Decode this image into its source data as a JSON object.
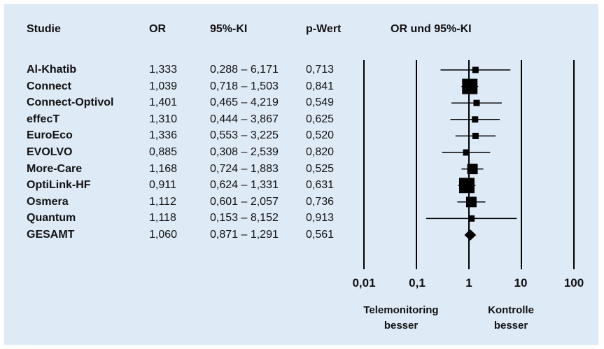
{
  "headers": {
    "study": "Studie",
    "or": "OR",
    "ci": "95%-KI",
    "p": "p-Wert",
    "plot": "OR und 95%-KI"
  },
  "rows": [
    {
      "study": "Al-Khatib",
      "or": "1,333",
      "ci": "0,288 – 6,171",
      "p": "0,713"
    },
    {
      "study": "Connect",
      "or": "1,039",
      "ci": "0,718 – 1,503",
      "p": "0,841"
    },
    {
      "study": "Connect-Optivol",
      "or": "1,401",
      "ci": "0,465 – 4,219",
      "p": "0,549"
    },
    {
      "study": "effecT",
      "or": "1,310",
      "ci": "0,444 – 3,867",
      "p": "0,625"
    },
    {
      "study": "EuroEco",
      "or": "1,336",
      "ci": "0,553 – 3,225",
      "p": "0,520"
    },
    {
      "study": "EVOLVO",
      "or": "0,885",
      "ci": "0,308 – 2,539",
      "p": "0,820"
    },
    {
      "study": "More-Care",
      "or": "1,168",
      "ci": "0,724 – 1,883",
      "p": "0,525"
    },
    {
      "study": "OptiLink-HF",
      "or": "0,911",
      "ci": "0,624 – 1,331",
      "p": "0,631"
    },
    {
      "study": "Osmera",
      "or": "1,112",
      "ci": "0,601 – 2,057",
      "p": "0,736"
    },
    {
      "study": "Quantum",
      "or": "1,118",
      "ci": "0,153 – 8,152",
      "p": "0,913"
    },
    {
      "study": "GESAMT",
      "or": "1,060",
      "ci": "0,871 – 1,291",
      "p": "0,561"
    }
  ],
  "notes": {
    "left_line1": "Telemonitoring",
    "left_line2": "besser",
    "right_line1": "Kontrolle",
    "right_line2": "besser"
  },
  "chart_data": {
    "type": "forest",
    "title": "OR und 95%-KI",
    "x_scale": "log",
    "xlim": [
      0.01,
      100
    ],
    "x_ticks": [
      0.01,
      0.1,
      1,
      10,
      100
    ],
    "x_tick_labels": [
      "0,01",
      "0,1",
      "1",
      "10",
      "100"
    ],
    "reference_lines": [
      0.01,
      0.1,
      1,
      10,
      100
    ],
    "series": [
      {
        "study": "Al-Khatib",
        "or": 1.333,
        "lower": 0.288,
        "upper": 6.171,
        "weight": "small",
        "marker": "square"
      },
      {
        "study": "Connect",
        "or": 1.039,
        "lower": 0.718,
        "upper": 1.503,
        "weight": "large",
        "marker": "square"
      },
      {
        "study": "Connect-Optivol",
        "or": 1.401,
        "lower": 0.465,
        "upper": 4.219,
        "weight": "small",
        "marker": "square"
      },
      {
        "study": "effecT",
        "or": 1.31,
        "lower": 0.444,
        "upper": 3.867,
        "weight": "small",
        "marker": "square"
      },
      {
        "study": "EuroEco",
        "or": 1.336,
        "lower": 0.553,
        "upper": 3.225,
        "weight": "small",
        "marker": "square"
      },
      {
        "study": "EVOLVO",
        "or": 0.885,
        "lower": 0.308,
        "upper": 2.539,
        "weight": "small",
        "marker": "square"
      },
      {
        "study": "More-Care",
        "or": 1.168,
        "lower": 0.724,
        "upper": 1.883,
        "weight": "medium",
        "marker": "square"
      },
      {
        "study": "OptiLink-HF",
        "or": 0.911,
        "lower": 0.624,
        "upper": 1.331,
        "weight": "large",
        "marker": "square"
      },
      {
        "study": "Osmera",
        "or": 1.112,
        "lower": 0.601,
        "upper": 2.057,
        "weight": "medium",
        "marker": "square"
      },
      {
        "study": "Quantum",
        "or": 1.118,
        "lower": 0.153,
        "upper": 8.152,
        "weight": "small",
        "marker": "square"
      },
      {
        "study": "GESAMT",
        "or": 1.06,
        "lower": 0.871,
        "upper": 1.291,
        "weight": "pooled",
        "marker": "diamond"
      }
    ]
  }
}
